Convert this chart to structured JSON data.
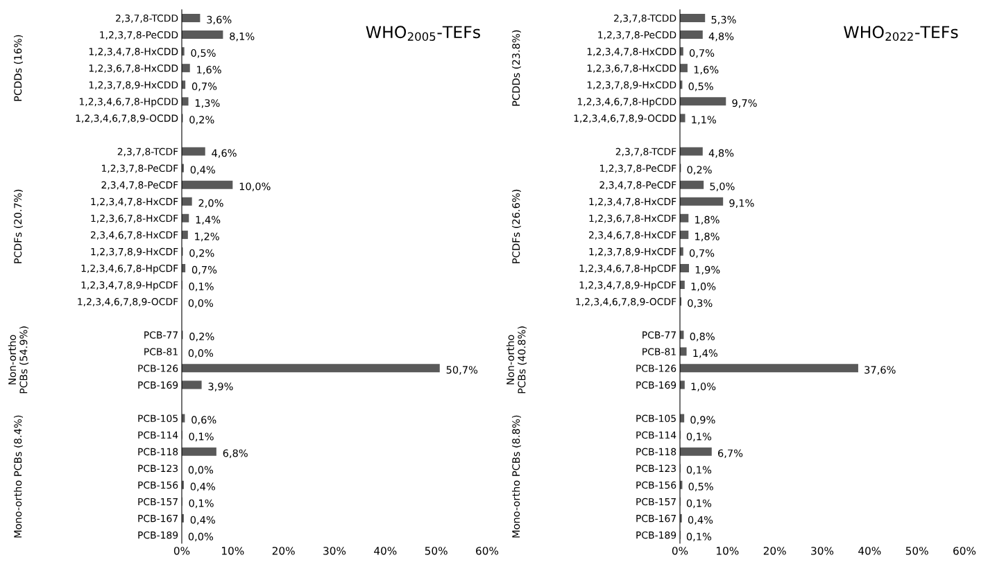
{
  "chart_data": [
    {
      "type": "bar",
      "orientation": "horizontal",
      "title": "WHO$_{2005}$-TEFs",
      "color": "#595959",
      "xlim": [
        0,
        60
      ],
      "xticks": [
        {
          "value": 0,
          "label": "0%"
        },
        {
          "value": 10,
          "label": "10%"
        },
        {
          "value": 20,
          "label": "20%"
        },
        {
          "value": 30,
          "label": "30%"
        },
        {
          "value": 40,
          "label": "40%"
        },
        {
          "value": 50,
          "label": "50%"
        },
        {
          "value": 60,
          "label": "60%"
        }
      ],
      "categories": [
        "2,3,7,8-TCDD",
        "1,2,3,7,8-PeCDD",
        "1,2,3,4,7,8-HxCDD",
        "1,2,3,6,7,8-HxCDD",
        "1,2,3,7,8,9-HxCDD",
        "1,2,3,4,6,7,8-HpCDD",
        "1,2,3,4,6,7,8,9-OCDD",
        null,
        "2,3,7,8-TCDF",
        "1,2,3,7,8-PeCDF",
        "2,3,4,7,8-PeCDF",
        "1,2,3,4,7,8-HxCDF",
        "1,2,3,6,7,8-HxCDF",
        "2,3,4,6,7,8-HxCDF",
        "1,2,3,7,8,9-HxCDF",
        "1,2,3,4,6,7,8-HpCDF",
        "1,2,3,4,7,8,9-HpCDF",
        "1,2,3,4,6,7,8,9-OCDF",
        null,
        "PCB-77",
        "PCB-81",
        "PCB-126",
        "PCB-169",
        null,
        "PCB-105",
        "PCB-114",
        "PCB-118",
        "PCB-123",
        "PCB-156",
        "PCB-157",
        "PCB-167",
        "PCB-189"
      ],
      "values": [
        3.6,
        8.1,
        0.5,
        1.6,
        0.7,
        1.3,
        0.2,
        null,
        4.6,
        0.4,
        10.0,
        2.0,
        1.4,
        1.2,
        0.2,
        0.7,
        0.1,
        0.0,
        null,
        0.2,
        0.0,
        50.7,
        3.9,
        null,
        0.6,
        0.1,
        6.8,
        0.0,
        0.4,
        0.1,
        0.4,
        0.0
      ],
      "value_labels": [
        "3,6%",
        "8,1%",
        "0,5%",
        "1,6%",
        "0,7%",
        "1,3%",
        "0,2%",
        null,
        "4,6%",
        "0,4%",
        "10,0%",
        "2,0%",
        "1,4%",
        "1,2%",
        "0,2%",
        "0,7%",
        "0,1%",
        "0,0%",
        null,
        "0,2%",
        "0,0%",
        "50,7%",
        "3,9%",
        null,
        "0,6%",
        "0,1%",
        "6,8%",
        "0,0%",
        "0,4%",
        "0,1%",
        "0,4%",
        "0,0%"
      ],
      "annotations": [
        "PCDDs (16%)",
        "PCDFs (20.7%)",
        "Non-ortho\nPCBs (54.9%)",
        "Mono-ortho PCBs (8.4%)"
      ]
    },
    {
      "type": "bar",
      "orientation": "horizontal",
      "title": "WHO$_{2022}$-TEFs",
      "color": "#595959",
      "xlim": [
        0,
        60
      ],
      "xticks": [
        {
          "value": 0,
          "label": "0%"
        },
        {
          "value": 10,
          "label": "10%"
        },
        {
          "value": 20,
          "label": "20%"
        },
        {
          "value": 30,
          "label": "30%"
        },
        {
          "value": 40,
          "label": "40%"
        },
        {
          "value": 50,
          "label": "50%"
        },
        {
          "value": 60,
          "label": "60%"
        }
      ],
      "categories": [
        "2,3,7,8-TCDD",
        "1,2,3,7,8-PeCDD",
        "1,2,3,4,7,8-HxCDD",
        "1,2,3,6,7,8-HxCDD",
        "1,2,3,7,8,9-HxCDD",
        "1,2,3,4,6,7,8-HpCDD",
        "1,2,3,4,6,7,8,9-OCDD",
        null,
        "2,3,7,8-TCDF",
        "1,2,3,7,8-PeCDF",
        "2,3,4,7,8-PeCDF",
        "1,2,3,4,7,8-HxCDF",
        "1,2,3,6,7,8-HxCDF",
        "2,3,4,6,7,8-HxCDF",
        "1,2,3,7,8,9-HxCDF",
        "1,2,3,4,6,7,8-HpCDF",
        "1,2,3,4,7,8,9-HpCDF",
        "1,2,3,4,6,7,8,9-OCDF",
        null,
        "PCB-77",
        "PCB-81",
        "PCB-126",
        "PCB-169",
        null,
        "PCB-105",
        "PCB-114",
        "PCB-118",
        "PCB-123",
        "PCB-156",
        "PCB-157",
        "PCB-167",
        "PCB-189"
      ],
      "values": [
        5.3,
        4.8,
        0.7,
        1.6,
        0.5,
        9.7,
        1.1,
        null,
        4.8,
        0.2,
        5.0,
        9.1,
        1.8,
        1.8,
        0.7,
        1.9,
        1.0,
        0.3,
        null,
        0.8,
        1.4,
        37.6,
        1.0,
        null,
        0.9,
        0.1,
        6.7,
        0.1,
        0.5,
        0.1,
        0.4,
        0.1
      ],
      "value_labels": [
        "5,3%",
        "4,8%",
        "0,7%",
        "1,6%",
        "0,5%",
        "9,7%",
        "1,1%",
        null,
        "4,8%",
        "0,2%",
        "5,0%",
        "9,1%",
        "1,8%",
        "1,8%",
        "0,7%",
        "1,9%",
        "1,0%",
        "0,3%",
        null,
        "0,8%",
        "1,4%",
        "37,6%",
        "1,0%",
        null,
        "0,9%",
        "0,1%",
        "6,7%",
        "0,1%",
        "0,5%",
        "0,1%",
        "0,4%",
        "0,1%"
      ],
      "annotations": [
        "PCDDs (23.8%)",
        "PCDFs (26.6%)",
        "Non-ortho\nPCBs (40.8%)",
        "Mono-ortho PCBs (8.8%)"
      ]
    }
  ]
}
